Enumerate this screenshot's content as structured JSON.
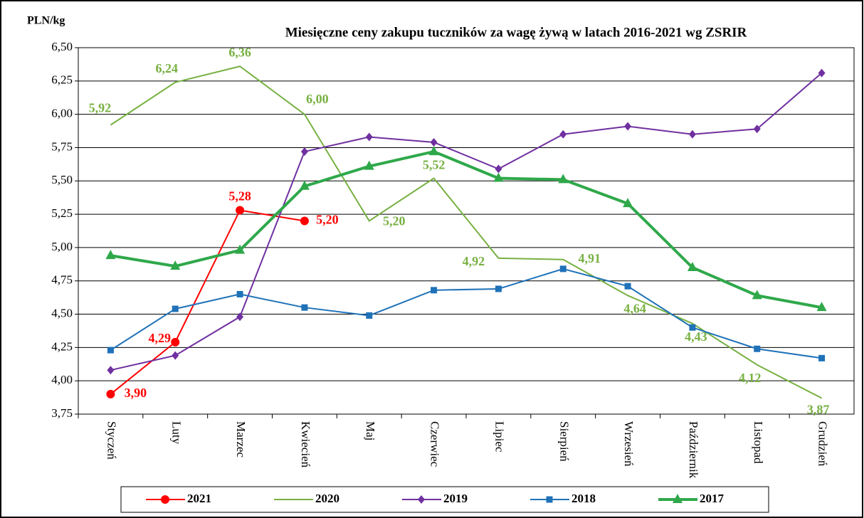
{
  "chart_data": {
    "type": "line",
    "title": "Miesięczne ceny zakupu tuczników za wagę żywą w latach 2016-2021  wg ZSRIR",
    "y_label": "PLN/kg",
    "categories": [
      "Styczeń",
      "Luty",
      "Marzec",
      "Kwiecień",
      "Maj",
      "Czerwiec",
      "Lipiec",
      "Sierpień",
      "Wrzesień",
      "Październik",
      "Listopad",
      "Grudzień"
    ],
    "ylim": [
      3.75,
      6.5
    ],
    "yticks": [
      {
        "value": 3.75,
        "label": "3,75"
      },
      {
        "value": 4.0,
        "label": "4,00"
      },
      {
        "value": 4.25,
        "label": "4,25"
      },
      {
        "value": 4.5,
        "label": "4,50"
      },
      {
        "value": 4.75,
        "label": "4,75"
      },
      {
        "value": 5.0,
        "label": "5,00"
      },
      {
        "value": 5.25,
        "label": "5,25"
      },
      {
        "value": 5.5,
        "label": "5,50"
      },
      {
        "value": 5.75,
        "label": "5,75"
      },
      {
        "value": 6.0,
        "label": "6,00"
      },
      {
        "value": 6.25,
        "label": "6,25"
      },
      {
        "value": 6.5,
        "label": "6,50"
      }
    ],
    "grid": true,
    "legend": "bottom",
    "series": [
      {
        "name": "2021",
        "color": "#ff0000",
        "marker": "circle",
        "values": [
          3.9,
          4.29,
          5.28,
          5.2,
          null,
          null,
          null,
          null,
          null,
          null,
          null,
          null
        ],
        "value_labels": [
          "3,90",
          "4,29",
          "5,28",
          "5,20",
          null,
          null,
          null,
          null,
          null,
          null,
          null,
          null
        ]
      },
      {
        "name": "2020",
        "color": "#77b041",
        "marker": "none",
        "values": [
          5.92,
          6.24,
          6.36,
          6.0,
          5.2,
          5.52,
          4.92,
          4.91,
          4.64,
          4.43,
          4.12,
          3.87
        ],
        "value_labels": [
          "5,92",
          "6,24",
          "6,36",
          "6,00",
          "5,20",
          "5,52",
          "4,92",
          "4,91",
          "4,64",
          "4,43",
          "4,12",
          "3,87"
        ]
      },
      {
        "name": "2019",
        "color": "#7030a0",
        "marker": "diamond",
        "values": [
          4.08,
          4.19,
          4.48,
          5.72,
          5.83,
          5.79,
          5.59,
          5.85,
          5.91,
          5.85,
          5.89,
          6.31
        ]
      },
      {
        "name": "2018",
        "color": "#1f72b8",
        "marker": "square",
        "values": [
          4.23,
          4.54,
          4.65,
          4.55,
          4.49,
          4.68,
          4.69,
          4.84,
          4.71,
          4.4,
          4.24,
          4.17
        ]
      },
      {
        "name": "2017",
        "color": "#2fa84a",
        "marker": "triangle",
        "values": [
          4.94,
          4.86,
          4.98,
          5.46,
          5.61,
          5.72,
          5.52,
          5.51,
          5.33,
          4.85,
          4.64,
          4.55
        ]
      }
    ]
  }
}
